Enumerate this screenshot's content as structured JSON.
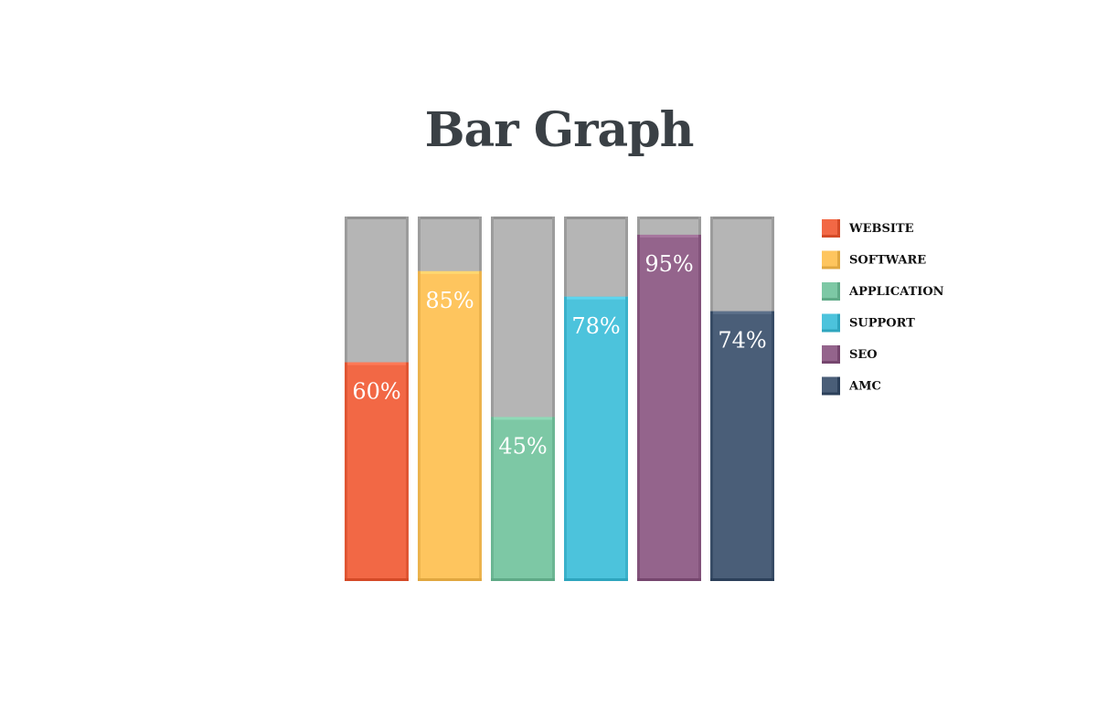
{
  "chart_data": {
    "type": "bar",
    "title": "Bar Graph",
    "categories": [
      "WEBSITE",
      "SOFTWARE",
      "APPLICATION",
      "SUPPORT",
      "SEO",
      "AMC"
    ],
    "values": [
      60,
      85,
      45,
      78,
      95,
      74
    ],
    "value_labels": [
      "60%",
      "85%",
      "45%",
      "78%",
      "95%",
      "74%"
    ],
    "ylim": [
      0,
      100
    ],
    "colors": [
      "#f26845",
      "#fec55e",
      "#7dc8a5",
      "#4cc3dc",
      "#94648c",
      "#4a5e78"
    ],
    "track_color": "#b5b5b5",
    "legend_placement": "right",
    "grid": false
  }
}
